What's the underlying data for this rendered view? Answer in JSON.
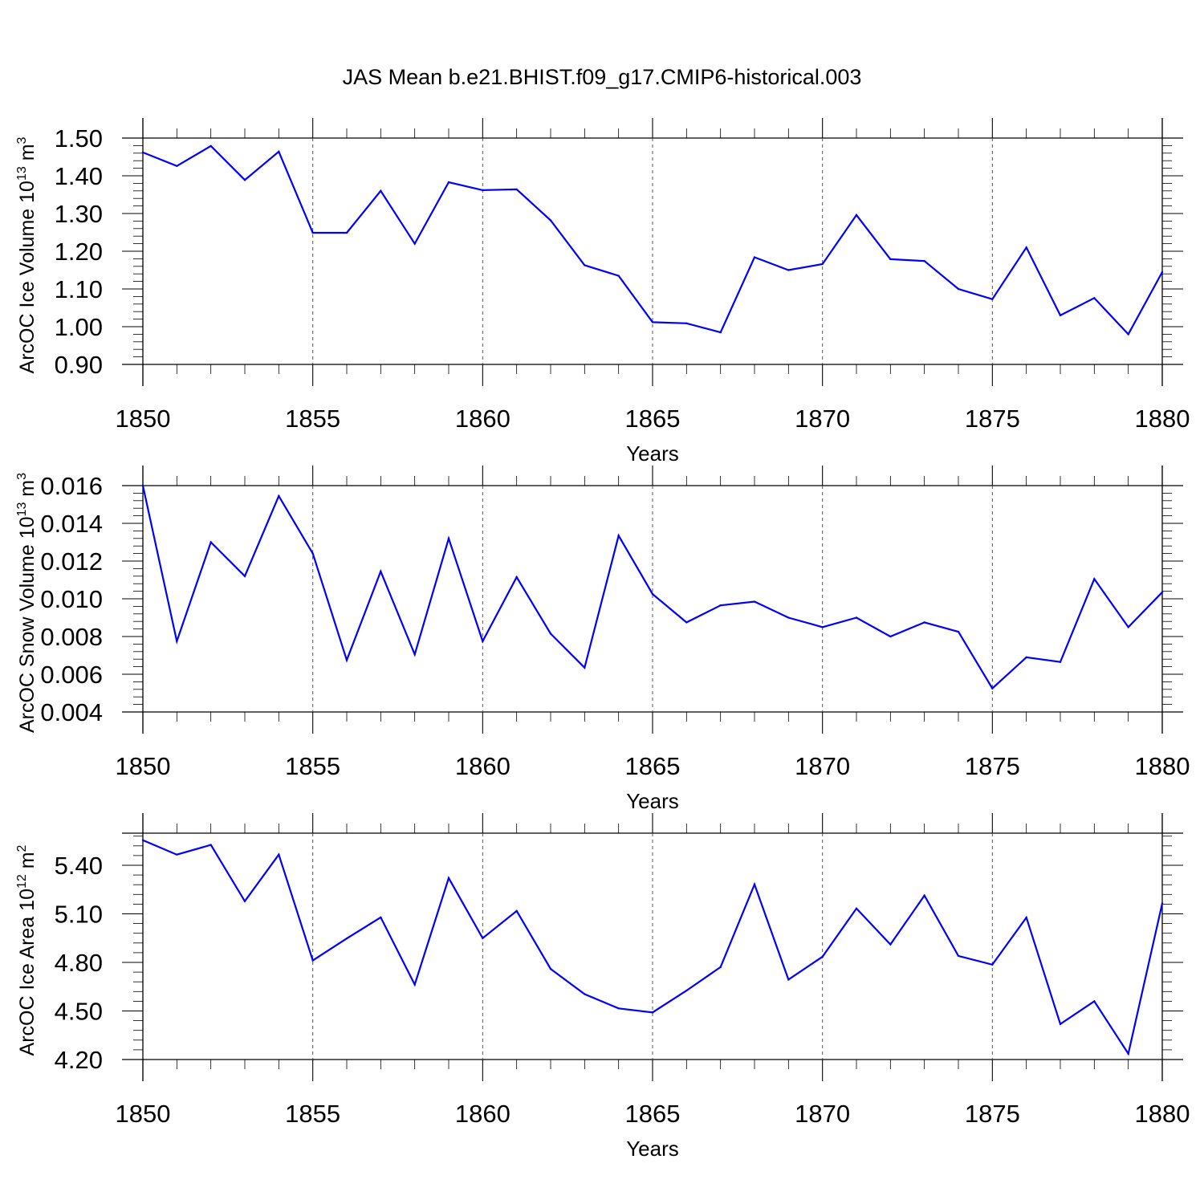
{
  "title": "JAS Mean b.e21.BHIST.f09_g17.CMIP6-historical.003",
  "chart_data": [
    {
      "type": "line",
      "name": "ice-volume",
      "ylabel": "ArcOC Ice Volume 10",
      "ylabel_exp": "13",
      "ylabel_unit": "m",
      "ylabel_unit_exp": "3",
      "xlabel": "Years",
      "xlim": [
        1850,
        1880
      ],
      "ylim": [
        0.9,
        1.5
      ],
      "x_ticks": [
        1850,
        1855,
        1860,
        1865,
        1870,
        1875,
        1880
      ],
      "y_ticks": [
        0.9,
        1.0,
        1.1,
        1.2,
        1.3,
        1.4,
        1.5
      ],
      "y_tick_labels": [
        "0.90",
        "1.00",
        "1.10",
        "1.20",
        "1.30",
        "1.40",
        "1.50"
      ],
      "x": [
        1850,
        1851,
        1852,
        1853,
        1854,
        1855,
        1856,
        1857,
        1858,
        1859,
        1860,
        1861,
        1862,
        1863,
        1864,
        1865,
        1866,
        1867,
        1868,
        1869,
        1870,
        1871,
        1872,
        1873,
        1874,
        1875,
        1876,
        1877,
        1878,
        1879,
        1880
      ],
      "values": [
        1.462,
        1.426,
        1.479,
        1.389,
        1.464,
        1.249,
        1.249,
        1.36,
        1.22,
        1.383,
        1.362,
        1.364,
        1.282,
        1.163,
        1.135,
        1.012,
        1.009,
        0.985,
        1.184,
        1.15,
        1.166,
        1.296,
        1.179,
        1.174,
        1.1,
        1.073,
        1.21,
        1.03,
        1.076,
        0.98,
        1.145
      ]
    },
    {
      "type": "line",
      "name": "snow-volume",
      "ylabel": "ArcOC Snow Volume 10",
      "ylabel_exp": "13",
      "ylabel_unit": "m",
      "ylabel_unit_exp": "3",
      "xlabel": "Years",
      "xlim": [
        1850,
        1880
      ],
      "ylim": [
        0.004,
        0.016
      ],
      "x_ticks": [
        1850,
        1855,
        1860,
        1865,
        1870,
        1875,
        1880
      ],
      "y_ticks": [
        0.004,
        0.006,
        0.008,
        0.01,
        0.012,
        0.014,
        0.016
      ],
      "y_tick_labels": [
        "0.004",
        "0.006",
        "0.008",
        "0.010",
        "0.012",
        "0.014",
        "0.016"
      ],
      "x": [
        1850,
        1851,
        1852,
        1853,
        1854,
        1855,
        1856,
        1857,
        1858,
        1859,
        1860,
        1861,
        1862,
        1863,
        1864,
        1865,
        1866,
        1867,
        1868,
        1869,
        1870,
        1871,
        1872,
        1873,
        1874,
        1875,
        1876,
        1877,
        1878,
        1879,
        1880
      ],
      "values": [
        0.016,
        0.00775,
        0.013,
        0.0112,
        0.01545,
        0.0124,
        0.00675,
        0.01145,
        0.00705,
        0.0132,
        0.00775,
        0.01115,
        0.00815,
        0.00635,
        0.01335,
        0.01025,
        0.00875,
        0.00965,
        0.00985,
        0.009,
        0.0085,
        0.009,
        0.008,
        0.00875,
        0.00825,
        0.00525,
        0.0069,
        0.00665,
        0.01105,
        0.0085,
        0.01035
      ]
    },
    {
      "type": "line",
      "name": "ice-area",
      "ylabel": "ArcOC Ice Area 10",
      "ylabel_exp": "12",
      "ylabel_unit": "m",
      "ylabel_unit_exp": "2",
      "xlabel": "Years",
      "xlim": [
        1850,
        1880
      ],
      "ylim": [
        4.2,
        5.6
      ],
      "x_ticks": [
        1850,
        1855,
        1860,
        1865,
        1870,
        1875,
        1880
      ],
      "y_ticks": [
        4.2,
        4.5,
        4.8,
        5.1,
        5.4
      ],
      "y_tick_labels": [
        "4.20",
        "4.50",
        "4.80",
        "5.10",
        "5.40"
      ],
      "x": [
        1850,
        1851,
        1852,
        1853,
        1854,
        1855,
        1856,
        1857,
        1858,
        1859,
        1860,
        1861,
        1862,
        1863,
        1864,
        1865,
        1866,
        1867,
        1868,
        1869,
        1870,
        1871,
        1872,
        1873,
        1874,
        1875,
        1876,
        1877,
        1878,
        1879,
        1880
      ],
      "values": [
        5.555,
        5.466,
        5.526,
        5.178,
        5.466,
        4.812,
        4.948,
        5.078,
        4.663,
        5.321,
        4.95,
        5.118,
        4.76,
        4.604,
        4.516,
        4.491,
        4.626,
        4.771,
        5.282,
        4.694,
        4.835,
        5.133,
        4.911,
        5.213,
        4.84,
        4.786,
        5.077,
        4.419,
        4.56,
        4.236,
        5.165
      ]
    }
  ]
}
